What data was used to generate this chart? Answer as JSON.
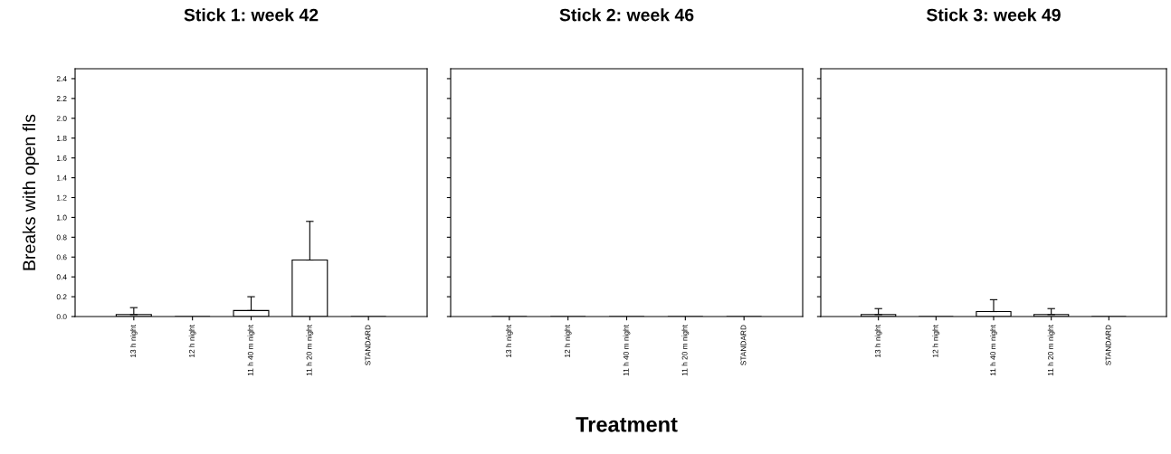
{
  "chart_data": [
    {
      "type": "bar",
      "title": "Stick 1: week 42",
      "ylabel": "Breaks with open fls",
      "categories": [
        "13 h night",
        "12 h night",
        "11 h 40 m night",
        "11 h 20 m night",
        "STANDARD"
      ],
      "series": [
        {
          "color": "#ffffff",
          "values": [
            0.02,
            0,
            0.06,
            0.57,
            0
          ],
          "errors": [
            [
              0.02,
              0.09
            ],
            null,
            [
              0.06,
              0.2
            ],
            [
              0.57,
              0.96
            ],
            null
          ]
        }
      ],
      "ylim": [
        0,
        2.5
      ],
      "yticks": [
        {
          "value": 0,
          "label": "0.0"
        },
        {
          "value": 0.2,
          "label": "0.2"
        },
        {
          "value": 0.4,
          "label": "0.4"
        },
        {
          "value": 0.6,
          "label": "0.6"
        },
        {
          "value": 0.8,
          "label": "0.8"
        },
        {
          "value": 1.0,
          "label": "1.0"
        },
        {
          "value": 1.2,
          "label": "1.2"
        },
        {
          "value": 1.4,
          "label": "1.4"
        },
        {
          "value": 1.6,
          "label": "1.6"
        },
        {
          "value": 1.8,
          "label": "1.8"
        },
        {
          "value": 2.0,
          "label": "2.0"
        },
        {
          "value": 2.2,
          "label": "2.2"
        },
        {
          "value": 2.4,
          "label": "2.4"
        }
      ]
    },
    {
      "type": "bar",
      "title": "Stick 2: week 46",
      "xlabel": "Treatment",
      "categories": [
        "13 h night",
        "12 h night",
        "11 h 40 m night",
        "11 h 20 m night",
        "STANDARD"
      ],
      "series": [
        {
          "color": "#ffffff",
          "values": [
            0,
            0,
            0,
            0,
            0
          ]
        }
      ],
      "ylim": [
        0,
        2.5
      ],
      "yticks": [
        {
          "value": 0,
          "label": null
        },
        {
          "value": 0.2,
          "label": null
        },
        {
          "value": 0.4,
          "label": null
        },
        {
          "value": 0.6,
          "label": null
        },
        {
          "value": 0.8,
          "label": null
        },
        {
          "value": 1.0,
          "label": null
        },
        {
          "value": 1.2,
          "label": null
        },
        {
          "value": 1.4,
          "label": null
        },
        {
          "value": 1.6,
          "label": null
        },
        {
          "value": 1.8,
          "label": null
        },
        {
          "value": 2.0,
          "label": null
        },
        {
          "value": 2.2,
          "label": null
        },
        {
          "value": 2.4,
          "label": null
        }
      ],
      "tick_labels": "x"
    },
    {
      "type": "bar",
      "title": "Stick 3: week 49",
      "categories": [
        "13 h night",
        "12 h night",
        "11 h 40 m night",
        "11 h 20 m night",
        "STANDARD"
      ],
      "series": [
        {
          "color": "#ffffff",
          "values": [
            0.02,
            0,
            0.05,
            0.02,
            0
          ],
          "errors": [
            [
              0.02,
              0.08
            ],
            null,
            [
              0.05,
              0.17
            ],
            [
              0.02,
              0.08
            ],
            null
          ]
        }
      ],
      "ylim": [
        0,
        2.5
      ],
      "yticks": [
        {
          "value": 0,
          "label": null
        },
        {
          "value": 0.2,
          "label": null
        },
        {
          "value": 0.4,
          "label": null
        },
        {
          "value": 0.6,
          "label": null
        },
        {
          "value": 0.8,
          "label": null
        },
        {
          "value": 1.0,
          "label": null
        },
        {
          "value": 1.2,
          "label": null
        },
        {
          "value": 1.4,
          "label": null
        },
        {
          "value": 1.6,
          "label": null
        },
        {
          "value": 1.8,
          "label": null
        },
        {
          "value": 2.0,
          "label": null
        },
        {
          "value": 2.2,
          "label": null
        },
        {
          "value": 2.4,
          "label": null
        }
      ],
      "tick_labels": "x"
    }
  ]
}
